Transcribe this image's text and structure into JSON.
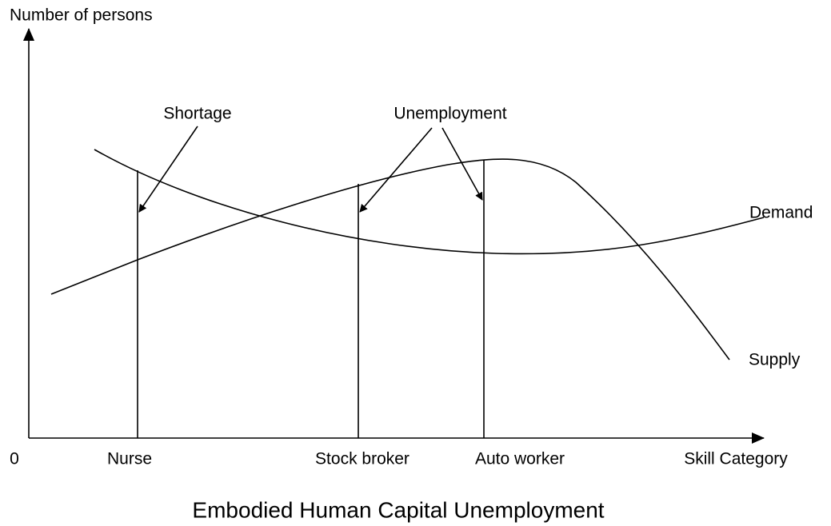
{
  "diagram": {
    "title": "Embodied Human Capital Unemployment",
    "y_axis_label": "Number of persons",
    "x_axis_label": "Skill Category",
    "origin_label": "0",
    "categories": [
      "Nurse",
      "Stock broker",
      "Auto worker"
    ],
    "annotations": [
      "Shortage",
      "Unemployment"
    ],
    "curves": [
      "Demand",
      "Supply"
    ]
  }
}
